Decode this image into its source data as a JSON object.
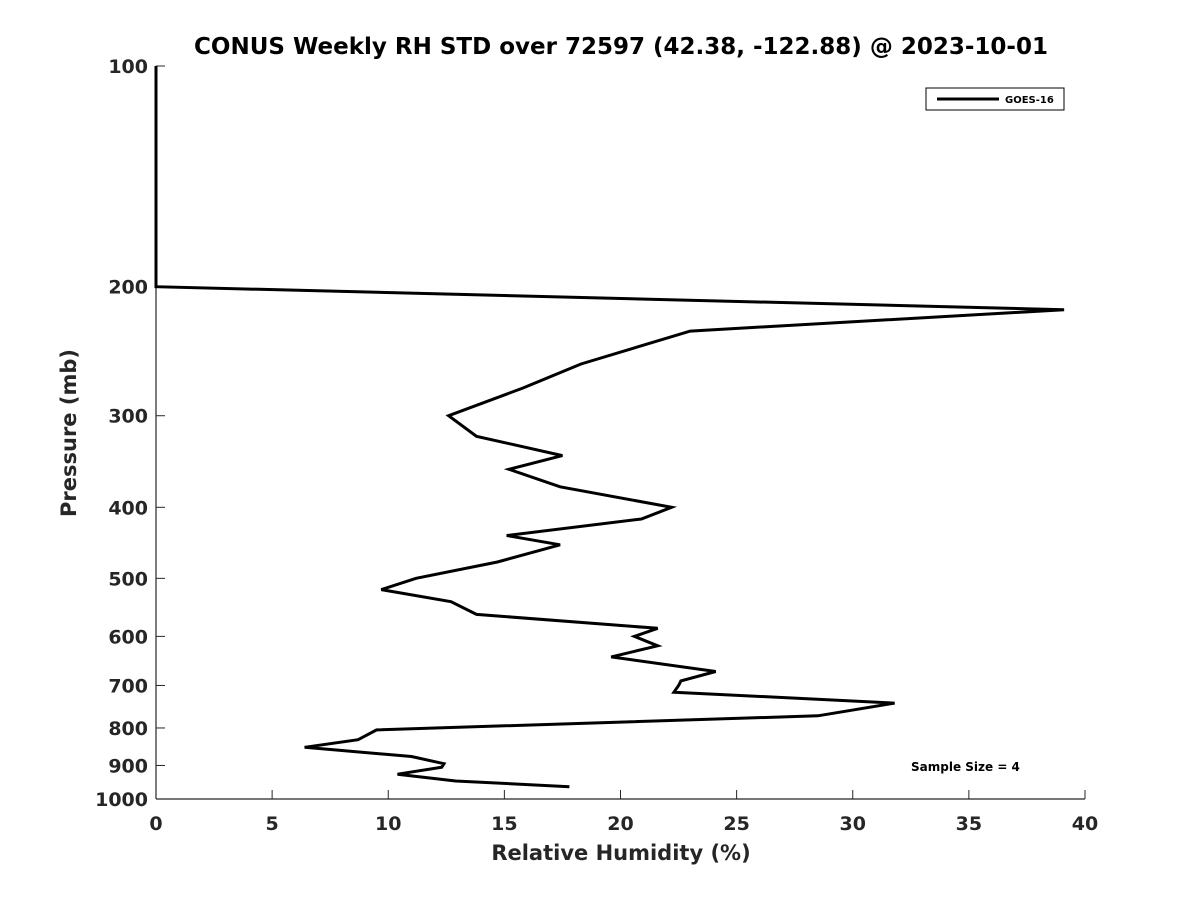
{
  "chart_data": {
    "type": "line",
    "title": "CONUS Weekly RH STD over 72597 (42.38, -122.88) @ 2023-10-01",
    "xlabel": "Relative Humidity (%)",
    "ylabel": "Pressure (mb)",
    "xlim": [
      0,
      40
    ],
    "ylim": [
      100,
      1000
    ],
    "y_scale": "log",
    "y_reversed": true,
    "x_ticks": [
      0,
      5,
      10,
      15,
      20,
      25,
      30,
      35,
      40
    ],
    "y_ticks": [
      100,
      200,
      300,
      400,
      500,
      600,
      700,
      800,
      900,
      1000
    ],
    "grid": false,
    "legend_position": "top-right",
    "series": [
      {
        "name": "GOES-16",
        "color": "#000000",
        "points": [
          {
            "x": 0,
            "y": 100
          },
          {
            "x": 0,
            "y": 150
          },
          {
            "x": 0,
            "y": 200
          },
          {
            "x": 39.1,
            "y": 215
          },
          {
            "x": 23.0,
            "y": 230
          },
          {
            "x": 18.3,
            "y": 255
          },
          {
            "x": 15.8,
            "y": 275
          },
          {
            "x": 12.6,
            "y": 300
          },
          {
            "x": 13.8,
            "y": 320
          },
          {
            "x": 17.5,
            "y": 340
          },
          {
            "x": 15.2,
            "y": 355
          },
          {
            "x": 17.4,
            "y": 375
          },
          {
            "x": 22.2,
            "y": 400
          },
          {
            "x": 20.9,
            "y": 415
          },
          {
            "x": 15.1,
            "y": 437
          },
          {
            "x": 17.4,
            "y": 450
          },
          {
            "x": 14.7,
            "y": 475
          },
          {
            "x": 11.2,
            "y": 500
          },
          {
            "x": 9.7,
            "y": 518
          },
          {
            "x": 12.7,
            "y": 538
          },
          {
            "x": 13.8,
            "y": 560
          },
          {
            "x": 21.6,
            "y": 585
          },
          {
            "x": 20.6,
            "y": 600
          },
          {
            "x": 21.6,
            "y": 618
          },
          {
            "x": 19.6,
            "y": 640
          },
          {
            "x": 24.1,
            "y": 670
          },
          {
            "x": 22.6,
            "y": 690
          },
          {
            "x": 22.5,
            "y": 700
          },
          {
            "x": 22.3,
            "y": 715
          },
          {
            "x": 31.8,
            "y": 740
          },
          {
            "x": 28.5,
            "y": 770
          },
          {
            "x": 9.5,
            "y": 805
          },
          {
            "x": 8.7,
            "y": 830
          },
          {
            "x": 6.4,
            "y": 850
          },
          {
            "x": 11.0,
            "y": 875
          },
          {
            "x": 12.4,
            "y": 895
          },
          {
            "x": 12.3,
            "y": 905
          },
          {
            "x": 10.4,
            "y": 925
          },
          {
            "x": 12.9,
            "y": 945
          },
          {
            "x": 17.8,
            "y": 962
          }
        ]
      }
    ],
    "annotations": [
      "Sample Size = 4"
    ]
  }
}
